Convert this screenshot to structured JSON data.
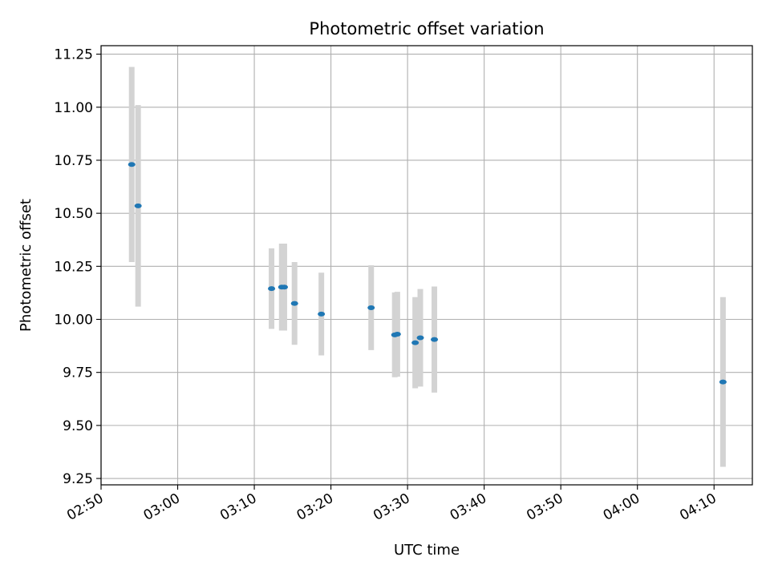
{
  "chart_data": {
    "type": "scatter",
    "title": "Photometric offset variation",
    "xlabel": "UTC time",
    "ylabel": "Photometric offset",
    "x_unit": "minutes",
    "xlim": [
      "02:50",
      "04:15"
    ],
    "ylim": [
      9.22,
      11.29
    ],
    "x_tick_labels": [
      "02:50",
      "03:00",
      "03:10",
      "03:20",
      "03:30",
      "03:40",
      "03:50",
      "04:00",
      "04:10"
    ],
    "y_tick_labels": [
      "9.25",
      "9.50",
      "9.75",
      "10.00",
      "10.25",
      "10.50",
      "10.75",
      "11.00",
      "11.25"
    ],
    "grid": true,
    "marker_color": "#1f77b4",
    "errorbar_color": "#d3d3d3",
    "series": [
      {
        "points": [
          {
            "x": "02:54:00",
            "y": 10.73,
            "err": 0.46
          },
          {
            "x": "02:54:50",
            "y": 10.535,
            "err": 0.475
          },
          {
            "x": "03:12:15",
            "y": 10.145,
            "err": 0.19
          },
          {
            "x": "03:13:35",
            "y": 10.152,
            "err": 0.205
          },
          {
            "x": "03:13:55",
            "y": 10.152,
            "err": 0.205
          },
          {
            "x": "03:15:15",
            "y": 10.075,
            "err": 0.195
          },
          {
            "x": "03:18:45",
            "y": 10.025,
            "err": 0.195
          },
          {
            "x": "03:25:15",
            "y": 10.055,
            "err": 0.2
          },
          {
            "x": "03:28:20",
            "y": 9.927,
            "err": 0.2
          },
          {
            "x": "03:28:40",
            "y": 9.93,
            "err": 0.2
          },
          {
            "x": "03:31:00",
            "y": 9.89,
            "err": 0.215
          },
          {
            "x": "03:31:40",
            "y": 9.913,
            "err": 0.23
          },
          {
            "x": "03:33:30",
            "y": 9.905,
            "err": 0.25
          },
          {
            "x": "04:11:10",
            "y": 9.705,
            "err": 0.4
          }
        ]
      }
    ]
  }
}
